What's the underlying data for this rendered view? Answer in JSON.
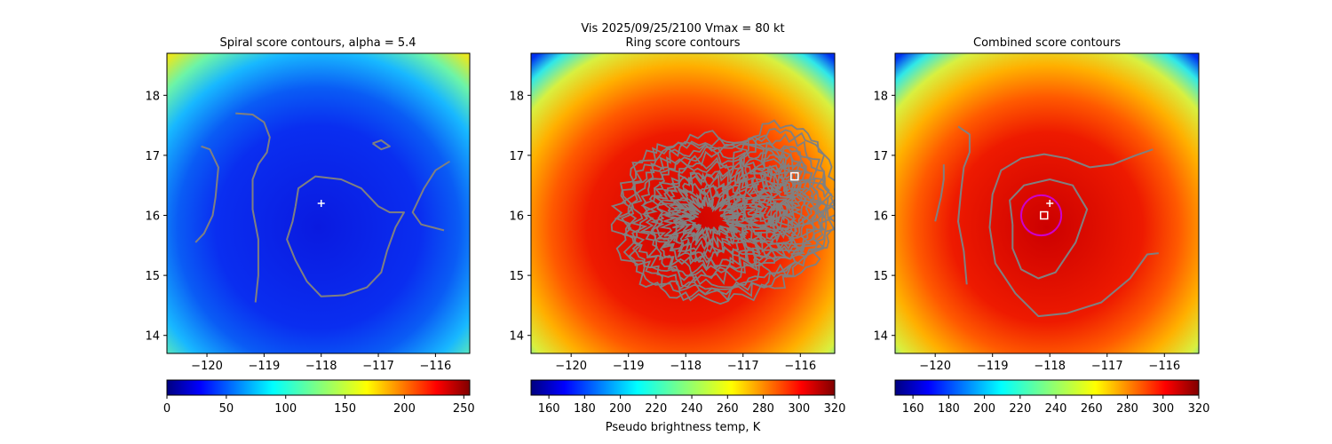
{
  "suptitle_line1": "Vis  2025/09/25/2100    Vmax = 80 kt",
  "colorbar_label": "Pseudo brightness temp, K",
  "chart_data": [
    {
      "type": "heatmap",
      "title": "Spiral score contours, alpha =  5.4",
      "x_range": [
        -120.7,
        -115.4
      ],
      "y_range": [
        13.7,
        18.7
      ],
      "xticks": [
        -120,
        -119,
        -118,
        -117,
        -116
      ],
      "yticks": [
        14,
        15,
        16,
        17,
        18
      ],
      "xtick_labels": [
        "−120",
        "−119",
        "−118",
        "−117",
        "−116"
      ],
      "ytick_labels": [
        "14",
        "15",
        "16",
        "17",
        "18"
      ],
      "colormap": "jet",
      "colorbar": {
        "range": [
          0,
          255
        ],
        "ticks": [
          0,
          50,
          100,
          150,
          200,
          250
        ],
        "tick_labels": [
          "0",
          "50",
          "100",
          "150",
          "200",
          "250"
        ],
        "reversed": false
      },
      "background_field": "brightness",
      "center_marker": {
        "symbol": "plus",
        "x": -118.0,
        "y": 16.2,
        "color": "#ffffff"
      },
      "contour_color": "#808080",
      "contours": [
        [
          [
            -119.5,
            17.7
          ],
          [
            -119.2,
            17.68
          ],
          [
            -119.0,
            17.55
          ],
          [
            -118.9,
            17.3
          ],
          [
            -118.95,
            17.05
          ],
          [
            -119.1,
            16.85
          ],
          [
            -119.2,
            16.6
          ],
          [
            -119.2,
            16.1
          ],
          [
            -119.1,
            15.6
          ],
          [
            -119.1,
            15.0
          ],
          [
            -119.15,
            14.55
          ]
        ],
        [
          [
            -120.2,
            15.55
          ],
          [
            -120.05,
            15.7
          ],
          [
            -119.9,
            16.0
          ],
          [
            -119.85,
            16.3
          ],
          [
            -119.8,
            16.8
          ],
          [
            -119.95,
            17.1
          ],
          [
            -120.1,
            17.15
          ]
        ],
        [
          [
            -118.45,
            16.15
          ],
          [
            -118.4,
            16.45
          ],
          [
            -118.1,
            16.65
          ],
          [
            -117.65,
            16.6
          ],
          [
            -117.3,
            16.45
          ],
          [
            -117.0,
            16.15
          ],
          [
            -116.8,
            16.05
          ],
          [
            -116.55,
            16.05
          ],
          [
            -116.7,
            15.8
          ],
          [
            -116.85,
            15.4
          ],
          [
            -116.95,
            15.05
          ],
          [
            -117.2,
            14.8
          ],
          [
            -117.6,
            14.67
          ],
          [
            -118.0,
            14.65
          ],
          [
            -118.25,
            14.9
          ],
          [
            -118.45,
            15.25
          ],
          [
            -118.6,
            15.6
          ],
          [
            -118.5,
            15.9
          ],
          [
            -118.45,
            16.15
          ]
        ],
        [
          [
            -117.1,
            17.2
          ],
          [
            -116.95,
            17.25
          ],
          [
            -116.8,
            17.15
          ],
          [
            -116.95,
            17.1
          ],
          [
            -117.1,
            17.2
          ]
        ],
        [
          [
            -115.75,
            16.9
          ],
          [
            -116.0,
            16.75
          ],
          [
            -116.2,
            16.45
          ],
          [
            -116.4,
            16.05
          ],
          [
            -116.25,
            15.85
          ],
          [
            -115.85,
            15.75
          ]
        ]
      ]
    },
    {
      "type": "heatmap",
      "title": "Ring score contours",
      "x_range": [
        -120.7,
        -115.4
      ],
      "y_range": [
        13.7,
        18.7
      ],
      "xticks": [
        -120,
        -119,
        -118,
        -117,
        -116
      ],
      "yticks": [
        14,
        15,
        16,
        17,
        18
      ],
      "xtick_labels": [
        "−120",
        "−119",
        "−118",
        "−117",
        "−116"
      ],
      "ytick_labels": [
        "14",
        "15",
        "16",
        "17",
        "18"
      ],
      "colormap": "jet_r",
      "colorbar": {
        "range": [
          150,
          320
        ],
        "ticks": [
          160,
          180,
          200,
          220,
          240,
          260,
          280,
          300,
          320
        ],
        "tick_labels": [
          "160",
          "180",
          "200",
          "220",
          "240",
          "260",
          "280",
          "300",
          "320"
        ],
        "reversed": true
      },
      "background_field": "temperature",
      "center_marker": {
        "symbol": "square",
        "x": -116.1,
        "y": 16.65,
        "color": "#ffffff"
      },
      "contour_color": "#808080",
      "contours": []
    },
    {
      "type": "heatmap",
      "title": "Combined score contours",
      "x_range": [
        -120.7,
        -115.4
      ],
      "y_range": [
        13.7,
        18.7
      ],
      "xticks": [
        -120,
        -119,
        -118,
        -117,
        -116
      ],
      "yticks": [
        14,
        15,
        16,
        17,
        18
      ],
      "xtick_labels": [
        "−120",
        "−119",
        "−118",
        "−117",
        "−116"
      ],
      "ytick_labels": [
        "14",
        "15",
        "16",
        "17",
        "18"
      ],
      "colormap": "jet_r",
      "colorbar": {
        "range": [
          150,
          320
        ],
        "ticks": [
          160,
          180,
          200,
          220,
          240,
          260,
          280,
          300,
          320
        ],
        "tick_labels": [
          "160",
          "180",
          "200",
          "220",
          "240",
          "260",
          "280",
          "300",
          "320"
        ],
        "reversed": true
      },
      "background_field": "temperature",
      "center_marker": {
        "symbol": "plus",
        "x": -118.0,
        "y": 16.2,
        "color": "#ffffff"
      },
      "square_marker": {
        "x": -118.1,
        "y": 16.0,
        "color": "#ffffff"
      },
      "circle_marker": {
        "x": -118.15,
        "y": 16.0,
        "radius_deg": 0.35,
        "color": "#cc00cc"
      },
      "contour_color": "#808080",
      "contours": [
        [
          [
            -119.6,
            17.48
          ],
          [
            -119.4,
            17.35
          ],
          [
            -119.4,
            17.05
          ],
          [
            -119.5,
            16.8
          ],
          [
            -119.55,
            16.4
          ],
          [
            -119.6,
            15.9
          ],
          [
            -119.5,
            15.4
          ],
          [
            -119.45,
            14.85
          ]
        ],
        [
          [
            -120.0,
            15.9
          ],
          [
            -119.9,
            16.3
          ],
          [
            -119.85,
            16.6
          ],
          [
            -119.85,
            16.85
          ]
        ],
        [
          [
            -118.65,
            15.85
          ],
          [
            -118.7,
            16.25
          ],
          [
            -118.45,
            16.5
          ],
          [
            -118.0,
            16.6
          ],
          [
            -117.6,
            16.5
          ],
          [
            -117.35,
            16.1
          ],
          [
            -117.55,
            15.55
          ],
          [
            -117.9,
            15.05
          ],
          [
            -118.2,
            14.95
          ],
          [
            -118.5,
            15.1
          ],
          [
            -118.65,
            15.45
          ],
          [
            -118.65,
            15.85
          ]
        ],
        [
          [
            -116.2,
            17.1
          ],
          [
            -116.5,
            17.0
          ],
          [
            -116.9,
            16.85
          ],
          [
            -117.3,
            16.8
          ],
          [
            -117.7,
            16.95
          ],
          [
            -118.1,
            17.02
          ],
          [
            -118.5,
            16.95
          ],
          [
            -118.85,
            16.75
          ],
          [
            -119.0,
            16.35
          ],
          [
            -119.05,
            15.8
          ],
          [
            -118.95,
            15.2
          ],
          [
            -118.6,
            14.7
          ],
          [
            -118.2,
            14.32
          ],
          [
            -117.7,
            14.37
          ],
          [
            -117.1,
            14.55
          ],
          [
            -116.6,
            14.95
          ],
          [
            -116.3,
            15.35
          ],
          [
            -116.1,
            15.37
          ]
        ]
      ]
    }
  ]
}
